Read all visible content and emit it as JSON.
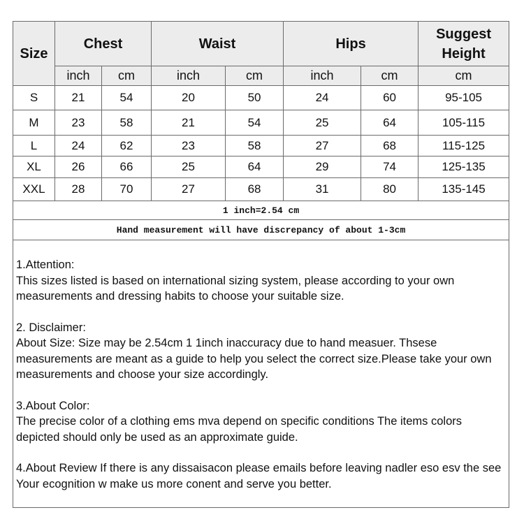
{
  "header": {
    "size": "Size",
    "groups": [
      "Chest",
      "Waist",
      "Hips"
    ],
    "height_line1": "Suggest",
    "height_line2": "Height",
    "units": [
      "inch",
      "cm",
      "inch",
      "cm",
      "inch",
      "cm",
      "cm"
    ]
  },
  "rows": [
    [
      "S",
      "21",
      "54",
      "20",
      "50",
      "24",
      "60",
      "95-105"
    ],
    [
      "M",
      "23",
      "58",
      "21",
      "54",
      "25",
      "64",
      "105-115"
    ],
    [
      "L",
      "24",
      "62",
      "23",
      "58",
      "27",
      "68",
      "115-125"
    ],
    [
      "XL",
      "26",
      "66",
      "25",
      "64",
      "29",
      "74",
      "125-135"
    ],
    [
      "XXL",
      "28",
      "70",
      "27",
      "68",
      "31",
      "80",
      "135-145"
    ]
  ],
  "note_conversion": "1 inch=2.54 cm",
  "note_discrepancy": "Hand measurement will have discrepancy of about 1-3cm",
  "notes": [
    {
      "title": "1.Attention:",
      "body": "This sizes listed is based on international sizing system, please according to your own measurements and dressing   habits to choose your suitable size."
    },
    {
      "title": "2. Disclaimer:",
      "body": "About Size: Size may be 2.54cm 1 1inch inaccuracy due to hand measuer. Thsese measurements are meant as a   guide to help you select the correct size.Please take your own measurements and choose your size accordingly."
    },
    {
      "title": "3.About Color:",
      "body": "The precise color of a clothing ems mva depend on specific conditions The items colors depicted should only be   used as an approximate guide."
    },
    {
      "title": "",
      "body": "4.About Review If there is any dissaisacon please emails before leaving nadler eso esv the see Your ecognition w   make us more conent and serve you better."
    }
  ]
}
